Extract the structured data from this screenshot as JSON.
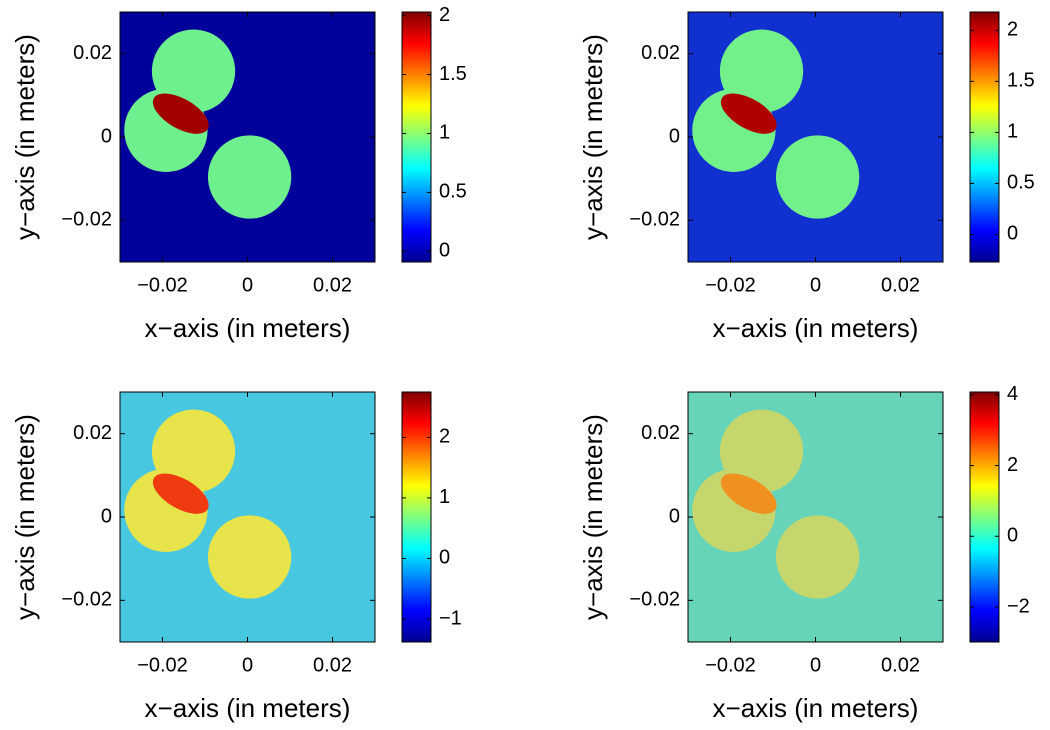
{
  "chart_data": [
    {
      "type": "heatmap",
      "xlabel": "x−axis (in meters)",
      "ylabel": "y−axis (in meters)",
      "xlim": [
        -0.03,
        0.03
      ],
      "ylim": [
        -0.03,
        0.03
      ],
      "xticks": [
        {
          "value": -0.02,
          "label": "−0.02"
        },
        0,
        0.02
      ],
      "yticks": [
        {
          "value": -0.02,
          "label": "−0.02"
        },
        0,
        0.02
      ],
      "colormap": "jet",
      "clim": [
        -0.09,
        2.03
      ],
      "cticks": [
        0,
        0.5,
        1,
        1.5,
        2
      ],
      "background_color": "#00009a",
      "disk_color": "#6ef08e",
      "ellipse_color": "#a00000"
    },
    {
      "type": "heatmap",
      "xlabel": "x−axis (in meters)",
      "ylabel": "y−axis (in meters)",
      "xlim": [
        -0.03,
        0.03
      ],
      "ylim": [
        -0.03,
        0.03
      ],
      "xticks": [
        {
          "value": -0.02,
          "label": "−0.02"
        },
        0,
        0.02
      ],
      "yticks": [
        {
          "value": -0.02,
          "label": "−0.02"
        },
        0,
        0.02
      ],
      "colormap": "jet",
      "clim": [
        -0.27,
        2.18
      ],
      "cticks": [
        0,
        0.5,
        1,
        1.5,
        2
      ],
      "background_color": "#1030d0",
      "disk_color": "#72f08a",
      "ellipse_color": "#b00000"
    },
    {
      "type": "heatmap",
      "xlabel": "x−axis (in meters)",
      "ylabel": "y−axis (in meters)",
      "xlim": [
        -0.03,
        0.03
      ],
      "ylim": [
        -0.03,
        0.03
      ],
      "xticks": [
        {
          "value": -0.02,
          "label": "−0.02"
        },
        0,
        0.02
      ],
      "yticks": [
        {
          "value": -0.02,
          "label": "−0.02"
        },
        0,
        0.02
      ],
      "colormap": "jet",
      "clim": [
        -1.38,
        2.75
      ],
      "cticks": [
        {
          "value": -1,
          "label": "−1"
        },
        0,
        1,
        2
      ],
      "background_color": "#48c8e0",
      "disk_color": "#e6e44a",
      "ellipse_color": "#f03a10"
    },
    {
      "type": "heatmap",
      "xlabel": "x−axis (in meters)",
      "ylabel": "y−axis (in meters)",
      "xlim": [
        -0.03,
        0.03
      ],
      "ylim": [
        -0.03,
        0.03
      ],
      "xticks": [
        {
          "value": -0.02,
          "label": "−0.02"
        },
        0,
        0.02
      ],
      "yticks": [
        {
          "value": -0.02,
          "label": "−0.02"
        },
        0,
        0.02
      ],
      "colormap": "jet",
      "clim": [
        -2.99,
        4.08
      ],
      "cticks": [
        {
          "value": -2,
          "label": "−2"
        },
        0,
        2,
        4
      ],
      "background_color": "#66d4b8",
      "disk_color": "#c4d66c",
      "ellipse_color": "#f0901e"
    }
  ]
}
